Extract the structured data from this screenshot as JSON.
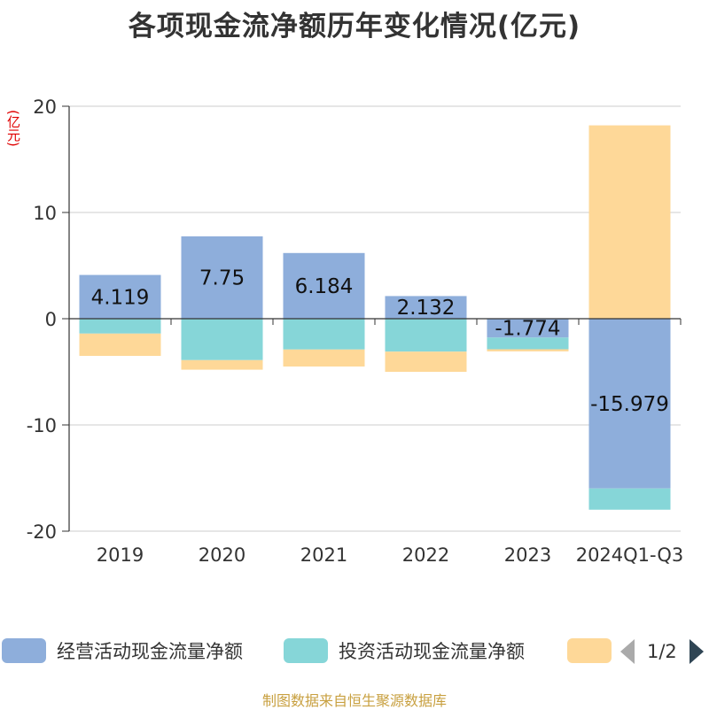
{
  "title": "各项现金流净额历年变化情况(亿元)",
  "unit": "(亿元)",
  "source": "制图数据来自恒生聚源数据库",
  "legend": {
    "items": [
      {
        "label": "经营活动现金流量净额",
        "color": "#8eaedb"
      },
      {
        "label": "投资活动现金流量净额",
        "color": "#86d6d8"
      },
      {
        "label": "",
        "color": "#fed898"
      }
    ],
    "pager": "1/2"
  },
  "chart_data": {
    "type": "bar",
    "stacked": true,
    "categories": [
      "2019",
      "2020",
      "2021",
      "2022",
      "2023",
      "2024Q1-Q3"
    ],
    "ylim": [
      -20,
      20
    ],
    "yticks": [
      20,
      10,
      0,
      -10,
      -20
    ],
    "grid": true,
    "series": [
      {
        "name": "经营活动现金流量净额",
        "color": "#8eaedb",
        "values": [
          4.119,
          7.75,
          6.184,
          2.132,
          -1.774,
          -15.979
        ]
      },
      {
        "name": "投资活动现金流量净额",
        "color": "#86d6d8",
        "values": [
          -1.4,
          -3.9,
          -2.9,
          -3.1,
          -1.1,
          -2.0
        ]
      },
      {
        "name": "",
        "color": "#fed898",
        "values": [
          -2.1,
          -0.9,
          -1.6,
          -1.9,
          -0.2,
          18.2
        ]
      }
    ],
    "data_labels": [
      "4.119",
      "7.75",
      "6.184",
      "2.132",
      "-1.774",
      "-15.979"
    ]
  }
}
